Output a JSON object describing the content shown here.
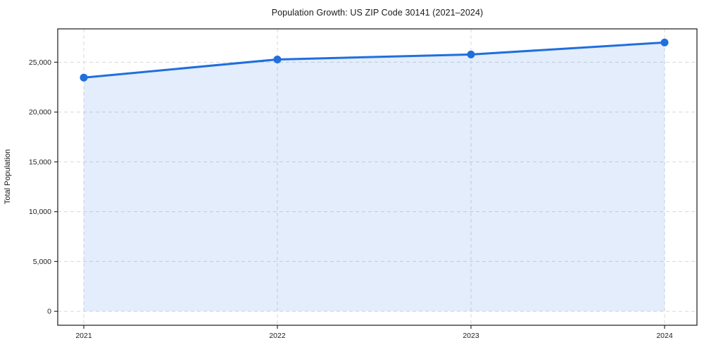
{
  "chart_data": {
    "type": "area",
    "title": "Population Growth: US ZIP Code 30141 (2021–2024)",
    "xlabel": "",
    "ylabel": "Total Population",
    "categories": [
      "2021",
      "2022",
      "2023",
      "2024"
    ],
    "series": [
      {
        "name": "Total Population",
        "values": [
          23460,
          25280,
          25780,
          26980
        ]
      }
    ],
    "yticks": [
      0,
      5000,
      10000,
      15000,
      20000,
      25000
    ],
    "ytick_labels": [
      "0",
      "5,000",
      "10,000",
      "15,000",
      "20,000",
      "25,000"
    ],
    "ylim": [
      -1400,
      28350
    ],
    "grid": true,
    "grid_style": "dashed",
    "legend_position": "none",
    "colors": {
      "line": "#1f6fdd",
      "marker": "#1f6fdd",
      "fill": "rgba(31,111,221,0.12)",
      "grid": "#d7d7d7",
      "spine": "#2b2b2b",
      "tick_text": "#1f1f1f"
    }
  }
}
